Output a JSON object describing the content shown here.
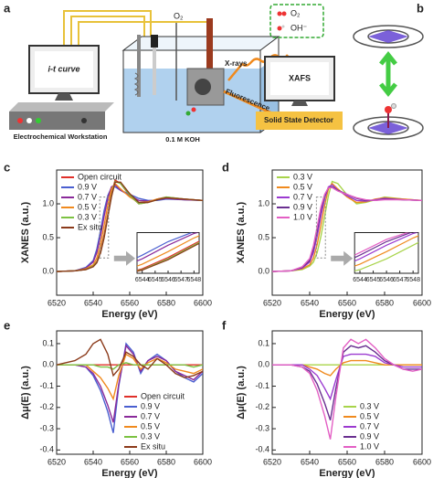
{
  "diagram": {
    "panel_a": "a",
    "panel_b": "b",
    "screen_left": "i-t curve",
    "workstation": "Electrochemical Workstation",
    "electrolyte": "0.1 M KOH",
    "gas": "O₂",
    "xrays": "X-rays",
    "fluorescence": "Fluorescence",
    "screen_right": "XAFS",
    "detector": "Solid State Detector",
    "legend_o2": "O₂",
    "legend_oh": "OH⁻"
  },
  "chart_data": [
    {
      "type": "line",
      "panel": "c",
      "xlabel": "Energy (eV)",
      "ylabel": "XANES (a.u.)",
      "legend": "upper left",
      "x": [
        6520,
        6530,
        6536,
        6540,
        6542,
        6544,
        6546,
        6548,
        6550,
        6552,
        6555,
        6560,
        6565,
        6570,
        6575,
        6580,
        6590,
        6600
      ],
      "xlim": [
        6520,
        6600
      ],
      "xticks": [
        6520,
        6540,
        6560,
        6580,
        6600
      ],
      "ylim": [
        -0.35,
        1.5
      ],
      "yticks": [
        {
          "value": 0,
          "label": "0.0"
        },
        0.5,
        {
          "value": 1,
          "label": "1.0"
        }
      ],
      "series": [
        {
          "name": "Open circuit",
          "color": "#e0302a",
          "values": [
            0,
            0.01,
            0.03,
            0.08,
            0.15,
            0.3,
            0.55,
            0.85,
            1.15,
            1.35,
            1.3,
            1.12,
            1.0,
            1.02,
            1.07,
            1.1,
            1.07,
            1.05
          ]
        },
        {
          "name": "0.9 V",
          "color": "#4a5fd0",
          "values": [
            0,
            0.01,
            0.06,
            0.16,
            0.33,
            0.6,
            0.9,
            1.12,
            1.24,
            1.25,
            1.2,
            1.14,
            1.08,
            1.05,
            1.05,
            1.07,
            1.06,
            1.05
          ]
        },
        {
          "name": "0.7 V",
          "color": "#8a2a9a",
          "values": [
            0,
            0.01,
            0.05,
            0.14,
            0.28,
            0.52,
            0.82,
            1.08,
            1.25,
            1.28,
            1.2,
            1.12,
            1.05,
            1.04,
            1.06,
            1.08,
            1.06,
            1.05
          ]
        },
        {
          "name": "0.5 V",
          "color": "#f08a1e",
          "values": [
            0,
            0.01,
            0.04,
            0.1,
            0.2,
            0.4,
            0.68,
            0.98,
            1.22,
            1.3,
            1.22,
            1.1,
            1.02,
            1.03,
            1.07,
            1.09,
            1.07,
            1.05
          ]
        },
        {
          "name": "0.3 V",
          "color": "#7cc242",
          "values": [
            0,
            0.01,
            0.03,
            0.08,
            0.14,
            0.28,
            0.52,
            0.82,
            1.12,
            1.33,
            1.3,
            1.13,
            1.0,
            1.02,
            1.06,
            1.1,
            1.07,
            1.05
          ]
        },
        {
          "name": "Ex situ",
          "color": "#8b3a1a",
          "values": [
            0,
            0.01,
            0.03,
            0.07,
            0.13,
            0.27,
            0.5,
            0.8,
            1.1,
            1.32,
            1.32,
            1.15,
            1.02,
            1.02,
            1.06,
            1.09,
            1.07,
            1.05
          ]
        }
      ],
      "inset": {
        "xlim": [
          6543.6,
          6548.4
        ],
        "ylim": [
          0.2,
          1.1
        ],
        "xticks": [
          6544,
          6545,
          6546,
          6547,
          6548
        ]
      }
    },
    {
      "type": "line",
      "panel": "d",
      "xlabel": "Energy (eV)",
      "ylabel": "XANES (a.u.)",
      "legend": "upper left",
      "x": [
        6520,
        6530,
        6536,
        6540,
        6542,
        6544,
        6546,
        6548,
        6550,
        6552,
        6555,
        6560,
        6565,
        6570,
        6575,
        6580,
        6590,
        6600
      ],
      "xlim": [
        6520,
        6600
      ],
      "xticks": [
        6520,
        6540,
        6560,
        6580,
        6600
      ],
      "ylim": [
        -0.35,
        1.5
      ],
      "yticks": [
        {
          "value": 0,
          "label": "0.0"
        },
        0.5,
        {
          "value": 1,
          "label": "1.0"
        }
      ],
      "series": [
        {
          "name": "0.3 V",
          "color": "#a8d44a",
          "values": [
            0,
            0.01,
            0.03,
            0.08,
            0.14,
            0.28,
            0.52,
            0.82,
            1.12,
            1.33,
            1.3,
            1.13,
            1.0,
            1.02,
            1.06,
            1.1,
            1.07,
            1.05
          ]
        },
        {
          "name": "0.5 V",
          "color": "#f08a1e",
          "values": [
            0,
            0.01,
            0.04,
            0.1,
            0.2,
            0.4,
            0.68,
            0.98,
            1.22,
            1.3,
            1.22,
            1.1,
            1.02,
            1.03,
            1.07,
            1.09,
            1.07,
            1.05
          ]
        },
        {
          "name": "0.7 V",
          "color": "#9b3ad0",
          "values": [
            0,
            0.01,
            0.05,
            0.14,
            0.28,
            0.52,
            0.82,
            1.08,
            1.25,
            1.28,
            1.2,
            1.12,
            1.05,
            1.04,
            1.06,
            1.08,
            1.06,
            1.05
          ]
        },
        {
          "name": "0.9 V",
          "color": "#6a3090",
          "values": [
            0,
            0.01,
            0.06,
            0.16,
            0.33,
            0.6,
            0.9,
            1.12,
            1.24,
            1.25,
            1.2,
            1.14,
            1.08,
            1.05,
            1.05,
            1.07,
            1.06,
            1.05
          ]
        },
        {
          "name": "1.0 V",
          "color": "#e35fc4",
          "values": [
            0,
            0.01,
            0.07,
            0.19,
            0.38,
            0.66,
            0.95,
            1.14,
            1.24,
            1.24,
            1.19,
            1.14,
            1.09,
            1.06,
            1.05,
            1.06,
            1.06,
            1.05
          ]
        }
      ],
      "inset": {
        "xlim": [
          6543.6,
          6548.4
        ],
        "ylim": [
          0.2,
          1.1
        ],
        "xticks": [
          6544,
          6545,
          6546,
          6547,
          6548
        ]
      }
    },
    {
      "type": "line",
      "panel": "e",
      "xlabel": "Energy (eV)",
      "ylabel": "Δμ(E) (a.u.)",
      "legend": "lower right",
      "x": [
        6520,
        6530,
        6536,
        6540,
        6544,
        6548,
        6551,
        6554,
        6558,
        6562,
        6566,
        6570,
        6575,
        6580,
        6585,
        6590,
        6595,
        6600
      ],
      "xlim": [
        6520,
        6600
      ],
      "xticks": [
        6520,
        6540,
        6560,
        6580,
        6600
      ],
      "ylim": [
        -0.42,
        0.16
      ],
      "yticks": [
        -0.4,
        -0.3,
        -0.2,
        -0.1,
        {
          "value": 0,
          "label": "0.0"
        },
        0.1
      ],
      "series": [
        {
          "name": "Open circuit",
          "color": "#e0302a",
          "values": [
            0,
            0,
            0,
            0,
            0,
            0,
            0,
            0,
            0,
            0,
            0,
            0,
            0,
            0,
            0,
            0,
            0,
            0
          ]
        },
        {
          "name": "0.9 V",
          "color": "#4a5fd0",
          "values": [
            0,
            0,
            -0.01,
            -0.05,
            -0.12,
            -0.22,
            -0.32,
            -0.1,
            0.1,
            0.06,
            -0.04,
            0.02,
            0.05,
            0.02,
            -0.03,
            -0.06,
            -0.08,
            -0.04
          ]
        },
        {
          "name": "0.7 V",
          "color": "#8a2a9a",
          "values": [
            0,
            0,
            -0.01,
            -0.04,
            -0.1,
            -0.19,
            -0.27,
            -0.09,
            0.09,
            0.05,
            -0.03,
            0.02,
            0.04,
            0.02,
            -0.03,
            -0.05,
            -0.07,
            -0.03
          ]
        },
        {
          "name": "0.5 V",
          "color": "#f08a1e",
          "values": [
            0,
            0,
            0,
            -0.03,
            -0.06,
            -0.11,
            -0.16,
            -0.05,
            0.05,
            0.03,
            -0.02,
            0.01,
            0.03,
            0.01,
            -0.02,
            -0.03,
            -0.04,
            -0.02
          ]
        },
        {
          "name": "0.3 V",
          "color": "#7cc242",
          "values": [
            0,
            0,
            0,
            0,
            -0.01,
            -0.01,
            -0.02,
            0,
            0.01,
            0,
            0,
            0,
            0,
            0,
            0,
            0,
            -0.01,
            0
          ]
        },
        {
          "name": "Ex situ",
          "color": "#8b3a1a",
          "values": [
            0,
            0.02,
            0.05,
            0.1,
            0.12,
            0.05,
            -0.05,
            -0.02,
            0.06,
            0.04,
            0,
            -0.02,
            0.03,
            0,
            -0.04,
            -0.06,
            -0.05,
            -0.03
          ]
        }
      ]
    },
    {
      "type": "line",
      "panel": "f",
      "xlabel": "Energy (eV)",
      "ylabel": "Δμ(E) (a.u.)",
      "legend": "lower right",
      "x": [
        6520,
        6530,
        6536,
        6540,
        6544,
        6548,
        6551,
        6554,
        6558,
        6562,
        6566,
        6570,
        6575,
        6580,
        6585,
        6590,
        6595,
        6600
      ],
      "xlim": [
        6520,
        6600
      ],
      "xticks": [
        6520,
        6540,
        6560,
        6580,
        6600
      ],
      "ylim": [
        -0.42,
        0.16
      ],
      "yticks": [
        -0.4,
        -0.3,
        -0.2,
        -0.1,
        {
          "value": 0,
          "label": "0.0"
        },
        0.1
      ],
      "series": [
        {
          "name": "0.3 V",
          "color": "#a8d44a",
          "values": [
            0,
            0,
            0,
            0,
            0,
            0,
            0,
            0,
            0,
            0,
            0,
            0,
            0,
            0,
            0,
            0,
            0,
            0
          ]
        },
        {
          "name": "0.5 V",
          "color": "#f08a1e",
          "values": [
            0,
            0,
            0,
            -0.01,
            -0.02,
            -0.04,
            -0.05,
            -0.02,
            0.01,
            0.02,
            0.02,
            0.02,
            0.01,
            0,
            0,
            0,
            0,
            0
          ]
        },
        {
          "name": "0.7 V",
          "color": "#9b3ad0",
          "values": [
            0,
            0,
            0,
            -0.02,
            -0.05,
            -0.11,
            -0.16,
            -0.07,
            0.04,
            0.05,
            0.05,
            0.05,
            0.04,
            0.01,
            0,
            -0.01,
            -0.01,
            -0.01
          ]
        },
        {
          "name": "0.9 V",
          "color": "#6a3090",
          "values": [
            0,
            0,
            -0.01,
            -0.03,
            -0.09,
            -0.18,
            -0.26,
            -0.11,
            0.06,
            0.09,
            0.08,
            0.09,
            0.06,
            0.02,
            0,
            -0.02,
            -0.02,
            -0.02
          ]
        },
        {
          "name": "1.0 V",
          "color": "#e35fc4",
          "values": [
            0,
            0,
            -0.01,
            -0.04,
            -0.12,
            -0.24,
            -0.35,
            -0.15,
            0.08,
            0.12,
            0.1,
            0.12,
            0.08,
            0.03,
            0,
            -0.02,
            -0.03,
            -0.02
          ]
        }
      ]
    }
  ]
}
